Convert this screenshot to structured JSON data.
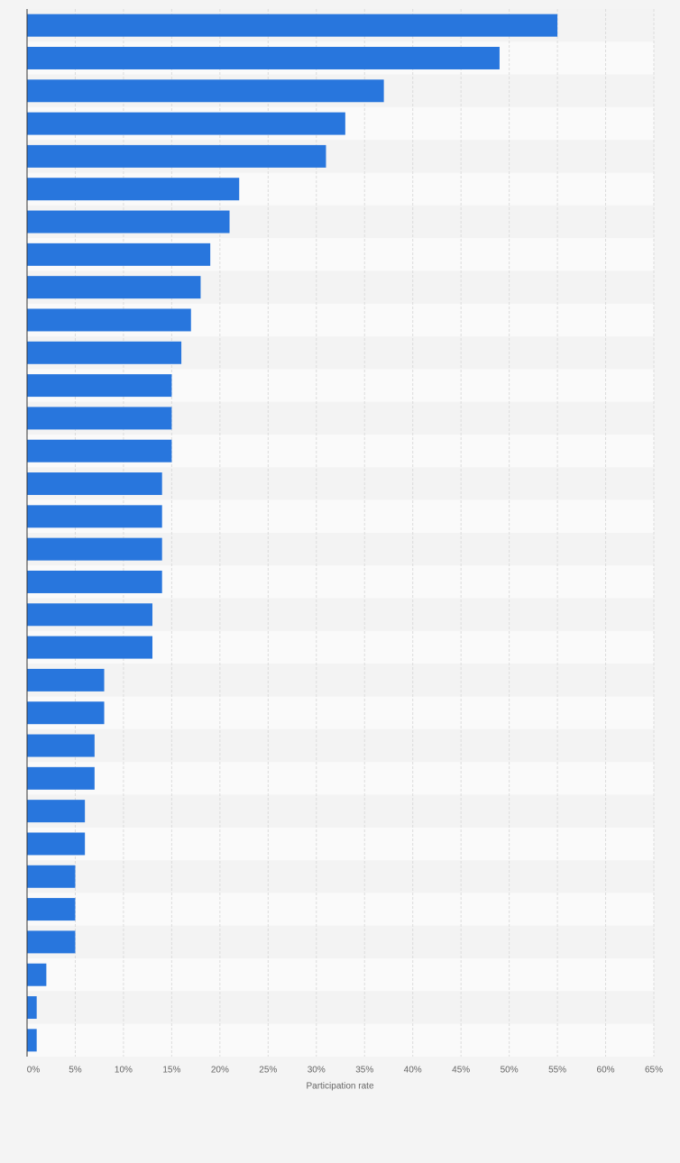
{
  "chart_data": {
    "type": "bar",
    "orientation": "horizontal",
    "x_label": "Participation rate",
    "categories": [
      null,
      null,
      null,
      null,
      null,
      null,
      null,
      null,
      null,
      null,
      null,
      null,
      null,
      null,
      null,
      null,
      null,
      null,
      null,
      null,
      null,
      null,
      null,
      null,
      null,
      null,
      null,
      null,
      null,
      null,
      null,
      null
    ],
    "values": [
      55,
      49,
      37,
      33,
      31,
      22,
      21,
      19,
      18,
      17,
      16,
      15,
      15,
      15,
      14,
      14,
      14,
      14,
      13,
      13,
      8,
      8,
      7,
      7,
      6,
      6,
      5,
      5,
      5,
      2,
      1,
      1
    ],
    "color": "#2876dd",
    "xlim": [
      0,
      65
    ],
    "xticks": [
      {
        "value": 0,
        "label": "0%"
      },
      {
        "value": 5,
        "label": "5%"
      },
      {
        "value": 10,
        "label": "10%"
      },
      {
        "value": 15,
        "label": "15%"
      },
      {
        "value": 20,
        "label": "20%"
      },
      {
        "value": 25,
        "label": "25%"
      },
      {
        "value": 30,
        "label": "30%"
      },
      {
        "value": 35,
        "label": "35%"
      },
      {
        "value": 40,
        "label": "40%"
      },
      {
        "value": 45,
        "label": "45%"
      },
      {
        "value": 50,
        "label": "50%"
      },
      {
        "value": 55,
        "label": "55%"
      },
      {
        "value": 60,
        "label": "60%"
      },
      {
        "value": 65,
        "label": "65%"
      }
    ],
    "grid": true
  }
}
